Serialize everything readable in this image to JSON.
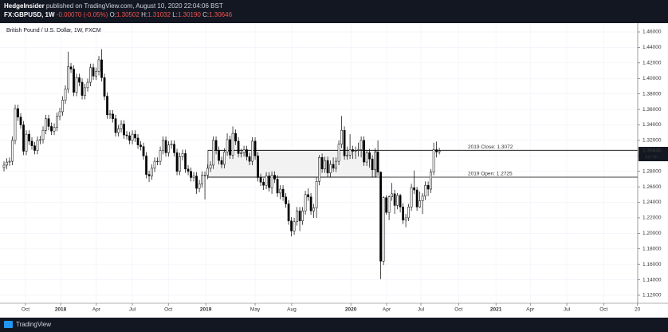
{
  "header": {
    "author": "HedgeInsider",
    "published": "published on TradingView.com, August 10, 2020 22:04:06 BST",
    "symbol": "FX:GBPUSD, 1W",
    "change": "-0.00070 (-0.05%)",
    "quote": [
      {
        "label": "O:",
        "value": "1.30502"
      },
      {
        "label": "H:",
        "value": "1.31032"
      },
      {
        "label": "L:",
        "value": "1.30190"
      },
      {
        "label": "C:",
        "value": "1.30646"
      }
    ]
  },
  "footer": {
    "brand": "TradingView"
  },
  "chart_data": {
    "type": "candlestick",
    "title": "British Pound / U.S. Dollar, 1W, FXCM",
    "up_color": "#ffffff",
    "down_color": "#000000",
    "outline_color": "#000000",
    "grid": true,
    "ylim": [
      1.1097,
      1.4703
    ],
    "yticks": [
      {
        "value": 1.12,
        "label": "1.12000"
      },
      {
        "value": 1.14,
        "label": "1.14000"
      },
      {
        "value": 1.16,
        "label": "1.16000"
      },
      {
        "value": 1.18,
        "label": "1.18000"
      },
      {
        "value": 1.2,
        "label": "1.20000"
      },
      {
        "value": 1.22,
        "label": "1.22000"
      },
      {
        "value": 1.24,
        "label": "1.24000"
      },
      {
        "value": 1.26,
        "label": "1.26000"
      },
      {
        "value": 1.28,
        "label": "1.28000"
      },
      {
        "value": 1.3,
        "label": "1.30000"
      },
      {
        "value": 1.32,
        "label": "1.32000"
      },
      {
        "value": 1.34,
        "label": "1.34000"
      },
      {
        "value": 1.36,
        "label": "1.36000"
      },
      {
        "value": 1.38,
        "label": "1.38000"
      },
      {
        "value": 1.4,
        "label": "1.40000"
      },
      {
        "value": 1.42,
        "label": "1.42000"
      },
      {
        "value": 1.44,
        "label": "1.44000"
      },
      {
        "value": 1.46,
        "label": "1.46000"
      }
    ],
    "xlim": [
      -1.43,
      227.1
    ],
    "xticks": [
      {
        "value": 7.7,
        "label": "Oct"
      },
      {
        "value": 20.3,
        "label": "2018"
      },
      {
        "value": 33.1,
        "label": "Apr"
      },
      {
        "value": 46,
        "label": "Jul"
      },
      {
        "value": 58.9,
        "label": "Oct"
      },
      {
        "value": 72.3,
        "label": "2019"
      },
      {
        "value": 90,
        "label": "May"
      },
      {
        "value": 103.1,
        "label": "Aug"
      },
      {
        "value": 124.3,
        "label": "2020"
      },
      {
        "value": 137.1,
        "label": "Apr"
      },
      {
        "value": 149.4,
        "label": "Jul"
      },
      {
        "value": 162.9,
        "label": "Oct"
      },
      {
        "value": 176.3,
        "label": "2021"
      },
      {
        "value": 188.6,
        "label": "Apr"
      },
      {
        "value": 201.7,
        "label": "Jul"
      },
      {
        "value": 214.9,
        "label": "Oct"
      },
      {
        "value": 227,
        "label": "20"
      }
    ],
    "countdown": "4d 0h",
    "zone": {
      "xrange": [
        73.1,
        133.4
      ],
      "fill": "#f2f2f2"
    },
    "levels": [
      {
        "label": "2019 Close: 1.3072",
        "value": 1.3072
      },
      {
        "label": "2019 Open: 1.2725",
        "value": 1.2725
      }
    ],
    "candles": [
      [
        1.285,
        1.293,
        1.28,
        1.288
      ],
      [
        1.288,
        1.297,
        1.283,
        1.292
      ],
      [
        1.292,
        1.298,
        1.287,
        1.293
      ],
      [
        1.293,
        1.325,
        1.288,
        1.32
      ],
      [
        1.32,
        1.366,
        1.315,
        1.361
      ],
      [
        1.361,
        1.366,
        1.345,
        1.35
      ],
      [
        1.35,
        1.355,
        1.335,
        1.34
      ],
      [
        1.34,
        1.345,
        1.301,
        1.306
      ],
      [
        1.306,
        1.333,
        1.301,
        1.328
      ],
      [
        1.328,
        1.333,
        1.314,
        1.319
      ],
      [
        1.319,
        1.324,
        1.308,
        1.313
      ],
      [
        1.313,
        1.318,
        1.302,
        1.307
      ],
      [
        1.307,
        1.325,
        1.302,
        1.32
      ],
      [
        1.32,
        1.326,
        1.315,
        1.321
      ],
      [
        1.321,
        1.338,
        1.316,
        1.333
      ],
      [
        1.333,
        1.353,
        1.328,
        1.348
      ],
      [
        1.348,
        1.353,
        1.333,
        1.338
      ],
      [
        1.338,
        1.343,
        1.327,
        1.332
      ],
      [
        1.332,
        1.342,
        1.327,
        1.337
      ],
      [
        1.337,
        1.356,
        1.332,
        1.351
      ],
      [
        1.351,
        1.362,
        1.346,
        1.357
      ],
      [
        1.357,
        1.377,
        1.352,
        1.372
      ],
      [
        1.372,
        1.391,
        1.367,
        1.386
      ],
      [
        1.386,
        1.4345,
        1.381,
        1.415
      ],
      [
        1.415,
        1.42,
        1.407,
        1.412
      ],
      [
        1.412,
        1.417,
        1.377,
        1.382
      ],
      [
        1.382,
        1.406,
        1.377,
        1.401
      ],
      [
        1.401,
        1.406,
        1.39,
        1.395
      ],
      [
        1.395,
        1.4,
        1.373,
        1.378
      ],
      [
        1.378,
        1.393,
        1.373,
        1.388
      ],
      [
        1.388,
        1.4,
        1.383,
        1.395
      ],
      [
        1.395,
        1.419,
        1.39,
        1.414
      ],
      [
        1.414,
        1.419,
        1.398,
        1.403
      ],
      [
        1.403,
        1.414,
        1.398,
        1.409
      ],
      [
        1.409,
        1.429,
        1.404,
        1.424
      ],
      [
        1.424,
        1.4377,
        1.396,
        1.401
      ],
      [
        1.401,
        1.406,
        1.372,
        1.377
      ],
      [
        1.377,
        1.382,
        1.348,
        1.353
      ],
      [
        1.353,
        1.359,
        1.348,
        1.354
      ],
      [
        1.354,
        1.359,
        1.343,
        1.348
      ],
      [
        1.348,
        1.353,
        1.325,
        1.33
      ],
      [
        1.33,
        1.34,
        1.325,
        1.335
      ],
      [
        1.335,
        1.346,
        1.33,
        1.341
      ],
      [
        1.341,
        1.346,
        1.322,
        1.327
      ],
      [
        1.327,
        1.332,
        1.321,
        1.326
      ],
      [
        1.326,
        1.331,
        1.315,
        1.32
      ],
      [
        1.32,
        1.333,
        1.315,
        1.328
      ],
      [
        1.328,
        1.333,
        1.318,
        1.323
      ],
      [
        1.323,
        1.328,
        1.309,
        1.314
      ],
      [
        1.314,
        1.319,
        1.307,
        1.312
      ],
      [
        1.312,
        1.317,
        1.295,
        1.3
      ],
      [
        1.3,
        1.305,
        1.271,
        1.276
      ],
      [
        1.276,
        1.281,
        1.2662,
        1.274
      ],
      [
        1.274,
        1.289,
        1.269,
        1.284
      ],
      [
        1.284,
        1.298,
        1.279,
        1.293
      ],
      [
        1.293,
        1.298,
        1.288,
        1.293
      ],
      [
        1.293,
        1.312,
        1.288,
        1.307
      ],
      [
        1.307,
        1.325,
        1.302,
        1.32
      ],
      [
        1.32,
        1.325,
        1.299,
        1.304
      ],
      [
        1.304,
        1.319,
        1.299,
        1.314
      ],
      [
        1.314,
        1.32,
        1.309,
        1.315
      ],
      [
        1.315,
        1.32,
        1.299,
        1.304
      ],
      [
        1.304,
        1.309,
        1.275,
        1.28
      ],
      [
        1.28,
        1.304,
        1.275,
        1.299
      ],
      [
        1.299,
        1.308,
        1.294,
        1.303
      ],
      [
        1.303,
        1.308,
        1.278,
        1.283
      ],
      [
        1.283,
        1.288,
        1.275,
        1.28
      ],
      [
        1.28,
        1.285,
        1.267,
        1.272
      ],
      [
        1.272,
        1.279,
        1.267,
        1.274
      ],
      [
        1.274,
        1.279,
        1.251,
        1.258
      ],
      [
        1.258,
        1.269,
        1.253,
        1.264
      ],
      [
        1.264,
        1.28,
        1.259,
        1.275
      ],
      [
        1.275,
        1.28,
        1.2438,
        1.275
      ],
      [
        1.275,
        1.289,
        1.27,
        1.284
      ],
      [
        1.284,
        1.293,
        1.279,
        1.288
      ],
      [
        1.288,
        1.325,
        1.283,
        1.32
      ],
      [
        1.32,
        1.325,
        1.302,
        1.307
      ],
      [
        1.307,
        1.312,
        1.289,
        1.294
      ],
      [
        1.294,
        1.299,
        1.284,
        1.289
      ],
      [
        1.289,
        1.31,
        1.284,
        1.305
      ],
      [
        1.305,
        1.329,
        1.3,
        1.321
      ],
      [
        1.321,
        1.326,
        1.296,
        1.301
      ],
      [
        1.301,
        1.338,
        1.296,
        1.329
      ],
      [
        1.329,
        1.334,
        1.314,
        1.319
      ],
      [
        1.319,
        1.324,
        1.298,
        1.303
      ],
      [
        1.303,
        1.309,
        1.298,
        1.304
      ],
      [
        1.304,
        1.313,
        1.299,
        1.308
      ],
      [
        1.308,
        1.313,
        1.294,
        1.299
      ],
      [
        1.299,
        1.304,
        1.288,
        1.293
      ],
      [
        1.293,
        1.324,
        1.288,
        1.319
      ],
      [
        1.319,
        1.324,
        1.295,
        1.3
      ],
      [
        1.3,
        1.305,
        1.267,
        1.272
      ],
      [
        1.272,
        1.277,
        1.261,
        1.266
      ],
      [
        1.266,
        1.271,
        1.256,
        1.262
      ],
      [
        1.262,
        1.279,
        1.257,
        1.274
      ],
      [
        1.274,
        1.279,
        1.254,
        1.259
      ],
      [
        1.259,
        1.28,
        1.251,
        1.275
      ],
      [
        1.275,
        1.28,
        1.265,
        1.27
      ],
      [
        1.27,
        1.275,
        1.247,
        1.252
      ],
      [
        1.252,
        1.262,
        1.244,
        1.257
      ],
      [
        1.257,
        1.262,
        1.242,
        1.247
      ],
      [
        1.247,
        1.252,
        1.233,
        1.238
      ],
      [
        1.238,
        1.243,
        1.211,
        1.216
      ],
      [
        1.216,
        1.221,
        1.196,
        1.203
      ],
      [
        1.203,
        1.22,
        1.198,
        1.215
      ],
      [
        1.215,
        1.234,
        1.21,
        1.229
      ],
      [
        1.229,
        1.234,
        1.203,
        1.216
      ],
      [
        1.216,
        1.234,
        1.211,
        1.229
      ],
      [
        1.229,
        1.255,
        1.224,
        1.25
      ],
      [
        1.25,
        1.258,
        1.242,
        1.247
      ],
      [
        1.247,
        1.252,
        1.224,
        1.229
      ],
      [
        1.229,
        1.238,
        1.22,
        1.233
      ],
      [
        1.233,
        1.272,
        1.22,
        1.267
      ],
      [
        1.267,
        1.301,
        1.262,
        1.298
      ],
      [
        1.298,
        1.303,
        1.278,
        1.283
      ],
      [
        1.283,
        1.299,
        1.278,
        1.294
      ],
      [
        1.294,
        1.299,
        1.273,
        1.278
      ],
      [
        1.278,
        1.294,
        1.273,
        1.289
      ],
      [
        1.289,
        1.298,
        1.279,
        1.284
      ],
      [
        1.284,
        1.298,
        1.279,
        1.293
      ],
      [
        1.293,
        1.32,
        1.288,
        1.315
      ],
      [
        1.315,
        1.3515,
        1.31,
        1.333
      ],
      [
        1.333,
        1.338,
        1.295,
        1.3
      ],
      [
        1.3,
        1.312,
        1.295,
        1.301
      ],
      [
        1.301,
        1.328,
        1.296,
        1.308
      ],
      [
        1.308,
        1.313,
        1.296,
        1.306
      ],
      [
        1.306,
        1.312,
        1.296,
        1.307
      ],
      [
        1.307,
        1.317,
        1.299,
        1.308
      ],
      [
        1.308,
        1.325,
        1.298,
        1.32
      ],
      [
        1.32,
        1.325,
        1.287,
        1.292
      ],
      [
        1.292,
        1.307,
        1.287,
        1.304
      ],
      [
        1.304,
        1.309,
        1.285,
        1.296
      ],
      [
        1.296,
        1.301,
        1.273,
        1.282
      ],
      [
        1.282,
        1.31,
        1.273,
        1.305
      ],
      [
        1.305,
        1.32,
        1.274,
        1.279
      ],
      [
        1.279,
        1.28,
        1.1409,
        1.164
      ],
      [
        1.164,
        1.248,
        1.159,
        1.246
      ],
      [
        1.246,
        1.249,
        1.224,
        1.227
      ],
      [
        1.227,
        1.249,
        1.217,
        1.247
      ],
      [
        1.247,
        1.265,
        1.242,
        1.251
      ],
      [
        1.251,
        1.256,
        1.225,
        1.236
      ],
      [
        1.236,
        1.252,
        1.231,
        1.249
      ],
      [
        1.249,
        1.251,
        1.227,
        1.234
      ],
      [
        1.234,
        1.239,
        1.212,
        1.217
      ],
      [
        1.217,
        1.225,
        1.208,
        1.22
      ],
      [
        1.22,
        1.238,
        1.216,
        1.234
      ],
      [
        1.234,
        1.264,
        1.229,
        1.259
      ],
      [
        1.259,
        1.281,
        1.251,
        1.256
      ],
      [
        1.256,
        1.26,
        1.229,
        1.234
      ],
      [
        1.234,
        1.254,
        1.233,
        1.242
      ],
      [
        1.242,
        1.252,
        1.225,
        1.248
      ],
      [
        1.248,
        1.267,
        1.243,
        1.262
      ],
      [
        1.262,
        1.267,
        1.248,
        1.257
      ],
      [
        1.257,
        1.283,
        1.252,
        1.279
      ],
      [
        1.279,
        1.317,
        1.275,
        1.308
      ],
      [
        1.308,
        1.3185,
        1.298,
        1.305
      ],
      [
        1.30502,
        1.31032,
        1.3019,
        1.30646
      ]
    ]
  }
}
